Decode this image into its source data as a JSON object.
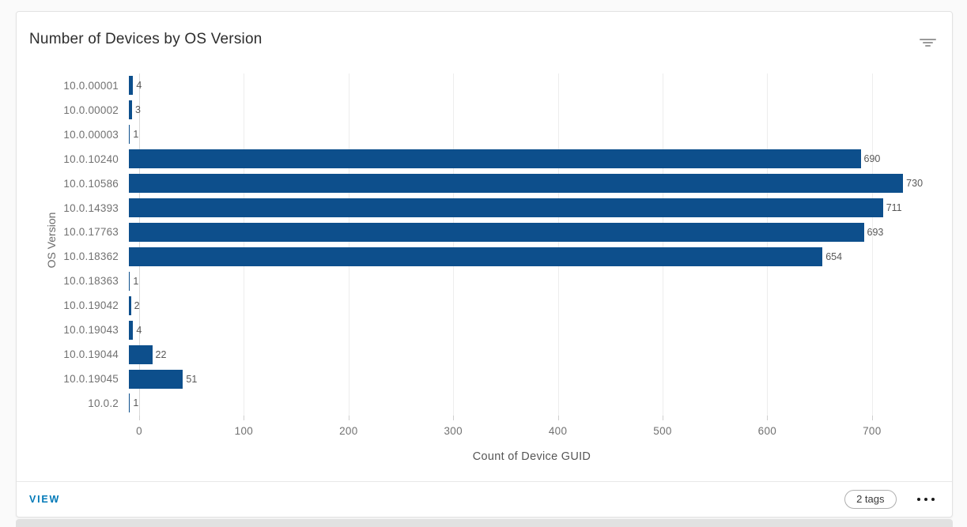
{
  "card": {
    "title": "Number of Devices by OS Version",
    "filter_icon": "filter-icon"
  },
  "chart_data": {
    "type": "bar",
    "orientation": "horizontal",
    "title": "Number of Devices by OS Version",
    "categories": [
      "10.0.00001",
      "10.0.00002",
      "10.0.00003",
      "10.0.10240",
      "10.0.10586",
      "10.0.14393",
      "10.0.17763",
      "10.0.18362",
      "10.0.18363",
      "10.0.19042",
      "10.0.19043",
      "10.0.19044",
      "10.0.19045",
      "10.0.2"
    ],
    "values": [
      4,
      3,
      1,
      690,
      730,
      711,
      693,
      654,
      1,
      2,
      4,
      22,
      51,
      1
    ],
    "xlabel": "Count of Device GUID",
    "ylabel": "OS Version",
    "xlim": [
      0,
      750
    ],
    "xticks": [
      0,
      100,
      200,
      300,
      400,
      500,
      600,
      700
    ],
    "grid": true,
    "legend": "none",
    "bar_color": "#0d4f8c"
  },
  "footer": {
    "view_label": "VIEW",
    "tags_label": "2 tags",
    "more_icon": "ellipsis-icon"
  },
  "colors": {
    "bar": "#0d4f8c",
    "link": "#0079b8",
    "axis_text": "#717171",
    "card_background": "#ffffff",
    "page_background": "#fafafa"
  }
}
